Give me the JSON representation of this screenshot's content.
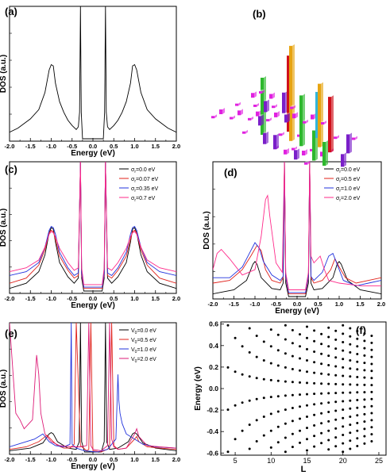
{
  "panels": [
    {
      "id": "a",
      "label": "(a)",
      "xlabel": "Energy (eV)",
      "ylabel": "DOS (a.u.)",
      "xticks": [
        "-2.0",
        "-1.5",
        "-1.0",
        "-0.5",
        "0.0",
        "0.5",
        "1.0",
        "1.5",
        "2.0"
      ],
      "colors": {
        "curve": "#000000"
      }
    },
    {
      "id": "b",
      "label": "(b)",
      "colors": {
        "magenta": "#e020e0",
        "purple": "#7a1fc9",
        "red": "#d0101a",
        "green": "#2db82d",
        "orange": "#e7a411",
        "cyan": "#33b5d9",
        "gray": "#9a9a9a"
      }
    },
    {
      "id": "c",
      "label": "(c)",
      "xlabel": "Energy (eV)",
      "ylabel": "DOS (a.u.)",
      "xticks": [
        "-2.0",
        "-1.5",
        "-1.0",
        "-0.5",
        "0.0",
        "0.5",
        "1.0",
        "1.5",
        "2.0"
      ],
      "legend": [
        {
          "symbol": "σ",
          "sub": "r",
          "value": "=0.0  eV",
          "color": "#000000"
        },
        {
          "symbol": "σ",
          "sub": "r",
          "value": "=0.07 eV",
          "color": "#e0201a"
        },
        {
          "symbol": "σ",
          "sub": "r",
          "value": "=0.35 eV",
          "color": "#2233dd"
        },
        {
          "symbol": "σ",
          "sub": "r",
          "value": "=0.7  eV",
          "color": "#ff2a8a"
        }
      ]
    },
    {
      "id": "d",
      "label": "(d)",
      "xlabel": "Energy (eV)",
      "ylabel": "DOS (a.u.)",
      "xticks": [
        "-2.0",
        "-1.5",
        "-1.0",
        "-0.5",
        "0.0",
        "0.5",
        "1.0",
        "1.5",
        "2.0"
      ],
      "legend": [
        {
          "symbol": "σ",
          "sub": "r",
          "value": "=0.0  eV",
          "color": "#000000"
        },
        {
          "symbol": "σ",
          "sub": "r",
          "value": "=0.5  eV",
          "color": "#e0201a"
        },
        {
          "symbol": "σ",
          "sub": "r",
          "value": "=1.0  eV",
          "color": "#2233dd"
        },
        {
          "symbol": "σ",
          "sub": "r",
          "value": "=2.0  eV",
          "color": "#ff2a8a"
        }
      ]
    },
    {
      "id": "e",
      "label": "(e)",
      "xlabel": "Energy (eV)",
      "ylabel": "DOS (a.u.)",
      "xticks": [
        "-2.0",
        "-1.5",
        "-1.0",
        "-0.5",
        "0.0",
        "0.5",
        "1.0",
        "1.5",
        "2.0"
      ],
      "legend": [
        {
          "symbol": "V",
          "sub": "0",
          "value": "=0.0  eV",
          "color": "#000000"
        },
        {
          "symbol": "V",
          "sub": "0",
          "value": "=0.5  eV",
          "color": "#e0201a"
        },
        {
          "symbol": "V",
          "sub": "0",
          "value": "=1.0  eV",
          "color": "#2233dd"
        },
        {
          "symbol": "V",
          "sub": "0",
          "value": "=2.0  eV",
          "color": "#dd1b77"
        }
      ]
    },
    {
      "id": "f",
      "label": "(f)",
      "xlabel": "L",
      "ylabel": "Energy (eV)",
      "xticks": [
        "5",
        "10",
        "15",
        "20",
        "25"
      ],
      "yticks": [
        "0.6",
        "0.4",
        "0.2",
        "0.0",
        "-0.2",
        "-0.4",
        "-0.6"
      ]
    }
  ],
  "chart_data": [
    {
      "type": "line",
      "panel": "a",
      "xlim": [
        -2.0,
        2.0
      ],
      "xlabel": "Energy (eV)",
      "ylabel": "DOS (a.u.)",
      "series": [
        {
          "color": "#000000",
          "x": [
            -2.0,
            -1.8,
            -1.5,
            -1.3,
            -1.15,
            -1.05,
            -1.0,
            -0.95,
            -0.9,
            -0.8,
            -0.7,
            -0.6,
            -0.5,
            -0.4,
            -0.35,
            -0.32,
            -0.3,
            -0.28,
            -0.25,
            0.25,
            0.28,
            0.3,
            0.32,
            0.35,
            0.4,
            0.5,
            0.6,
            0.7,
            0.8,
            0.9,
            0.95,
            1.0,
            1.05,
            1.15,
            1.3,
            1.5,
            1.8,
            2.0
          ],
          "y": [
            0.05,
            0.08,
            0.15,
            0.22,
            0.35,
            0.52,
            0.56,
            0.55,
            0.42,
            0.28,
            0.2,
            0.14,
            0.1,
            0.07,
            0.09,
            0.2,
            1.0,
            0.2,
            0.0,
            0.0,
            0.2,
            1.0,
            0.2,
            0.09,
            0.07,
            0.1,
            0.14,
            0.2,
            0.28,
            0.42,
            0.55,
            0.56,
            0.52,
            0.35,
            0.22,
            0.15,
            0.08,
            0.05
          ]
        }
      ]
    },
    {
      "type": "bar",
      "panel": "b",
      "note": "3D bar layout of local values on a lattice"
    },
    {
      "type": "line",
      "panel": "c",
      "xlim": [
        -2.0,
        2.0
      ],
      "xlabel": "Energy (eV)",
      "ylabel": "DOS (a.u.)",
      "series": [
        {
          "name": "σr=0.0 eV",
          "color": "#000000",
          "x": [
            -2.0,
            -1.6,
            -1.3,
            -1.15,
            -1.05,
            -1.0,
            -0.95,
            -0.9,
            -0.8,
            -0.6,
            -0.45,
            -0.35,
            -0.3,
            -0.27,
            -0.22,
            0.22,
            0.27,
            0.3,
            0.35,
            0.45,
            0.6,
            0.8,
            0.9,
            0.95,
            1.0,
            1.05,
            1.15,
            1.3,
            1.6,
            2.0
          ],
          "y": [
            0.02,
            0.06,
            0.15,
            0.28,
            0.45,
            0.49,
            0.48,
            0.38,
            0.22,
            0.11,
            0.06,
            0.1,
            1.0,
            0.1,
            0.0,
            0.0,
            0.1,
            1.0,
            0.1,
            0.06,
            0.11,
            0.22,
            0.38,
            0.48,
            0.49,
            0.45,
            0.28,
            0.15,
            0.06,
            0.02
          ]
        },
        {
          "name": "σr=0.07 eV",
          "color": "#e0201a",
          "x": [
            -2.0,
            -1.6,
            -1.3,
            -1.15,
            -1.05,
            -1.0,
            -0.95,
            -0.9,
            -0.8,
            -0.6,
            -0.45,
            -0.35,
            -0.3,
            -0.27,
            -0.22,
            0.22,
            0.27,
            0.3,
            0.35,
            0.45,
            0.6,
            0.8,
            0.9,
            0.95,
            1.0,
            1.05,
            1.15,
            1.3,
            1.6,
            2.0
          ],
          "y": [
            0.06,
            0.1,
            0.2,
            0.32,
            0.45,
            0.47,
            0.46,
            0.4,
            0.27,
            0.16,
            0.1,
            0.12,
            1.0,
            0.12,
            0.02,
            0.02,
            0.12,
            1.0,
            0.12,
            0.1,
            0.16,
            0.27,
            0.4,
            0.46,
            0.47,
            0.45,
            0.32,
            0.2,
            0.1,
            0.06
          ]
        },
        {
          "name": "σr=0.35 eV",
          "color": "#2233dd",
          "x": [
            -2.0,
            -1.6,
            -1.3,
            -1.15,
            -1.05,
            -1.0,
            -0.95,
            -0.9,
            -0.8,
            -0.6,
            -0.45,
            -0.35,
            -0.3,
            -0.27,
            -0.22,
            0.22,
            0.27,
            0.3,
            0.35,
            0.45,
            0.6,
            0.8,
            0.9,
            0.95,
            1.0,
            1.05,
            1.15,
            1.3,
            1.6,
            2.0
          ],
          "y": [
            0.12,
            0.15,
            0.22,
            0.34,
            0.47,
            0.5,
            0.49,
            0.44,
            0.3,
            0.18,
            0.12,
            0.14,
            1.0,
            0.14,
            0.03,
            0.03,
            0.14,
            1.0,
            0.14,
            0.12,
            0.18,
            0.3,
            0.44,
            0.49,
            0.5,
            0.47,
            0.34,
            0.22,
            0.15,
            0.12
          ]
        },
        {
          "name": "σr=0.7 eV",
          "color": "#ff2a8a",
          "x": [
            -2.0,
            -1.6,
            -1.3,
            -1.15,
            -1.05,
            -1.0,
            -0.95,
            -0.9,
            -0.8,
            -0.6,
            -0.45,
            -0.35,
            -0.3,
            -0.27,
            -0.22,
            0.22,
            0.27,
            0.3,
            0.35,
            0.45,
            0.6,
            0.8,
            0.9,
            0.95,
            1.0,
            1.05,
            1.15,
            1.3,
            1.6,
            2.0
          ],
          "y": [
            0.15,
            0.18,
            0.24,
            0.34,
            0.44,
            0.46,
            0.45,
            0.42,
            0.33,
            0.22,
            0.16,
            0.18,
            1.0,
            0.18,
            0.05,
            0.05,
            0.18,
            1.0,
            0.18,
            0.16,
            0.22,
            0.33,
            0.42,
            0.45,
            0.46,
            0.44,
            0.34,
            0.24,
            0.18,
            0.15
          ]
        }
      ]
    },
    {
      "type": "line",
      "panel": "d",
      "xlim": [
        -2.0,
        2.0
      ],
      "xlabel": "Energy (eV)",
      "ylabel": "DOS (a.u.)",
      "series": [
        {
          "name": "σr=0.0 eV",
          "color": "#000000",
          "x": [
            -2.0,
            -1.5,
            -1.2,
            -1.05,
            -1.0,
            -0.95,
            -0.85,
            -0.6,
            -0.4,
            -0.33,
            -0.3,
            -0.27,
            -0.2,
            0.2,
            0.27,
            0.3,
            0.33,
            0.4,
            0.6,
            0.85,
            0.95,
            1.0,
            1.05,
            1.2,
            1.5,
            2.0
          ],
          "y": [
            0.02,
            0.05,
            0.12,
            0.24,
            0.26,
            0.24,
            0.14,
            0.06,
            0.05,
            0.1,
            1.0,
            0.1,
            0.0,
            0.0,
            0.1,
            1.0,
            0.1,
            0.05,
            0.06,
            0.14,
            0.24,
            0.26,
            0.24,
            0.12,
            0.05,
            0.02
          ]
        },
        {
          "name": "σr=0.5 eV",
          "color": "#e0201a",
          "x": [
            -2.0,
            -1.6,
            -1.3,
            -1.1,
            -0.95,
            -0.85,
            -0.75,
            -0.6,
            -0.4,
            -0.33,
            -0.3,
            -0.27,
            -0.2,
            0.2,
            0.27,
            0.3,
            0.33,
            0.4,
            0.6,
            0.8,
            0.9,
            1.0,
            1.15,
            1.4,
            1.7,
            2.0
          ],
          "y": [
            0.1,
            0.12,
            0.2,
            0.3,
            0.38,
            0.34,
            0.2,
            0.12,
            0.1,
            0.14,
            1.0,
            0.14,
            0.02,
            0.02,
            0.14,
            1.0,
            0.14,
            0.1,
            0.12,
            0.2,
            0.28,
            0.22,
            0.14,
            0.1,
            0.12,
            0.14
          ]
        },
        {
          "name": "σr=1.0 eV",
          "color": "#2233dd",
          "x": [
            -2.0,
            -1.6,
            -1.3,
            -1.1,
            -1.0,
            -0.9,
            -0.8,
            -0.6,
            -0.4,
            -0.33,
            -0.3,
            -0.27,
            -0.2,
            0.2,
            0.27,
            0.3,
            0.33,
            0.4,
            0.6,
            0.75,
            0.85,
            0.95,
            1.1,
            1.4,
            1.7,
            2.0
          ],
          "y": [
            0.14,
            0.14,
            0.22,
            0.34,
            0.4,
            0.36,
            0.26,
            0.16,
            0.12,
            0.15,
            1.0,
            0.15,
            0.03,
            0.03,
            0.15,
            1.0,
            0.15,
            0.12,
            0.18,
            0.3,
            0.32,
            0.24,
            0.12,
            0.08,
            0.1,
            0.12
          ]
        },
        {
          "name": "σr=2.0 eV",
          "color": "#ff2a8a",
          "x": [
            -2.0,
            -1.9,
            -1.8,
            -1.6,
            -1.3,
            -1.0,
            -0.85,
            -0.75,
            -0.7,
            -0.65,
            -0.5,
            -0.35,
            -0.3,
            -0.27,
            -0.2,
            0.2,
            0.27,
            0.3,
            0.33,
            0.4,
            0.55,
            0.65,
            0.75,
            1.0,
            1.5,
            2.0
          ],
          "y": [
            0.2,
            0.32,
            0.35,
            0.28,
            0.16,
            0.2,
            0.45,
            0.72,
            0.75,
            0.6,
            0.25,
            0.18,
            1.0,
            0.18,
            0.05,
            0.05,
            0.18,
            1.0,
            0.3,
            0.25,
            0.3,
            0.2,
            0.12,
            0.1,
            0.08,
            0.08
          ]
        }
      ]
    },
    {
      "type": "line",
      "panel": "e",
      "xlim": [
        -2.0,
        2.0
      ],
      "xlabel": "Energy (eV)",
      "ylabel": "DOS (a.u.)",
      "series": [
        {
          "name": "V0=0.0 eV",
          "color": "#000000",
          "x": [
            -2.0,
            -1.5,
            -1.2,
            -1.05,
            -1.0,
            -0.95,
            -0.85,
            -0.6,
            -0.4,
            -0.33,
            -0.3,
            -0.27,
            -0.2,
            0.2,
            0.27,
            0.3,
            0.33,
            0.4,
            0.6,
            0.85,
            0.95,
            1.0,
            1.05,
            1.2,
            1.5,
            2.0
          ],
          "y": [
            0.01,
            0.03,
            0.07,
            0.14,
            0.15,
            0.14,
            0.08,
            0.03,
            0.02,
            0.08,
            1.0,
            0.08,
            0.0,
            0.0,
            0.08,
            1.0,
            0.08,
            0.02,
            0.03,
            0.08,
            0.14,
            0.15,
            0.14,
            0.07,
            0.03,
            0.01
          ]
        },
        {
          "name": "V0=0.5 eV",
          "color": "#e0201a",
          "x": [
            -2.0,
            -1.6,
            -1.3,
            -1.1,
            -0.95,
            -0.85,
            -0.7,
            -0.55,
            -0.45,
            -0.4,
            -0.3,
            -0.15,
            -0.1,
            -0.05,
            0.0,
            0.2,
            0.4,
            0.45,
            0.5,
            0.6,
            0.8,
            1.0,
            1.05,
            1.1,
            1.3,
            1.6,
            2.0
          ],
          "y": [
            0.02,
            0.04,
            0.08,
            0.13,
            0.08,
            0.05,
            0.03,
            0.03,
            0.06,
            1.0,
            0.05,
            0.01,
            0.02,
            1.0,
            0.01,
            0.0,
            0.03,
            1.0,
            0.05,
            0.02,
            0.03,
            0.1,
            0.12,
            0.08,
            0.04,
            0.03,
            0.02
          ]
        },
        {
          "name": "V0=1.0 eV",
          "color": "#2233dd",
          "x": [
            -2.0,
            -1.7,
            -1.4,
            -1.2,
            -1.05,
            -0.9,
            -0.7,
            -0.55,
            -0.52,
            -0.5,
            -0.4,
            -0.2,
            0.1,
            0.35,
            0.55,
            0.6,
            0.62,
            0.65,
            0.7,
            0.8,
            1.0,
            1.2,
            1.5,
            2.0
          ],
          "y": [
            0.04,
            0.07,
            0.1,
            0.14,
            0.08,
            0.05,
            0.04,
            0.06,
            1.0,
            0.06,
            0.03,
            0.01,
            0.0,
            0.02,
            0.1,
            0.6,
            0.4,
            0.3,
            0.22,
            0.14,
            0.1,
            0.06,
            0.04,
            0.03
          ]
        },
        {
          "name": "V0=2.0 eV",
          "color": "#dd1b77",
          "x": [
            -2.0,
            -1.85,
            -1.75,
            -1.65,
            -1.45,
            -1.35,
            -1.3,
            -1.25,
            -1.15,
            -1.0,
            -0.8,
            -0.5,
            -0.3,
            -0.15,
            -0.1,
            -0.05,
            0.0,
            0.2,
            0.35,
            0.4,
            0.45,
            0.5,
            0.6,
            0.8,
            1.0,
            1.05,
            1.1,
            1.3,
            1.6,
            2.0
          ],
          "y": [
            1.0,
            0.3,
            0.25,
            0.18,
            0.25,
            0.75,
            0.6,
            0.3,
            0.14,
            0.08,
            0.05,
            0.04,
            0.04,
            0.05,
            1.0,
            0.05,
            0.02,
            0.01,
            0.05,
            1.0,
            0.1,
            0.04,
            0.02,
            0.03,
            0.14,
            0.18,
            0.12,
            0.05,
            0.04,
            0.03
          ]
        }
      ]
    },
    {
      "type": "scatter",
      "panel": "f",
      "xlabel": "L",
      "ylabel": "Energy (eV)",
      "xlim": [
        3,
        26
      ],
      "ylim": [
        -0.62,
        0.62
      ],
      "note": "Energy levels vs L: at each L the values are ±(n+0.5)·1.57/L for n=0..7 with |E|≤0.6; plotted L = 4,5,6,...,24"
    }
  ]
}
